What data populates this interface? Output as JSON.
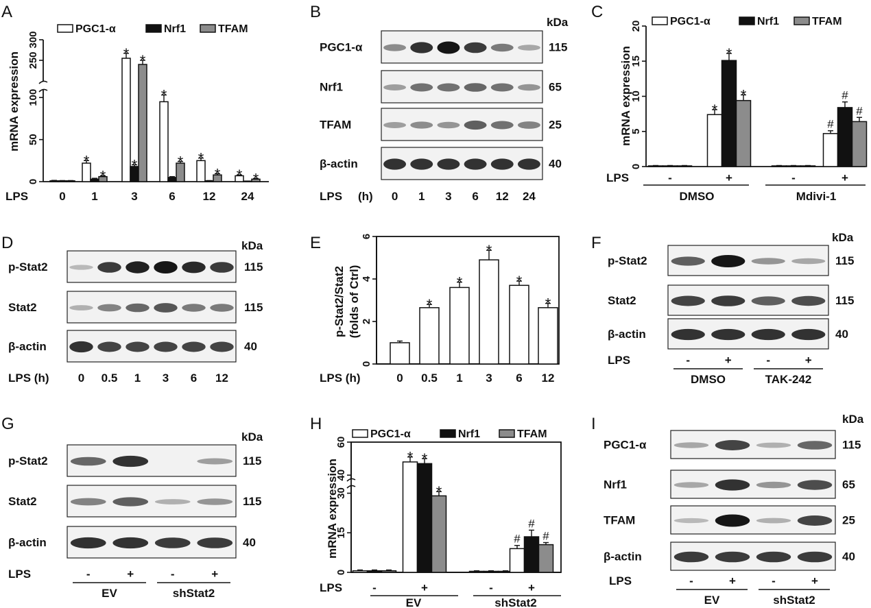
{
  "figure": {
    "panels": {
      "A": {
        "label": "A"
      },
      "B": {
        "label": "B"
      },
      "C": {
        "label": "C"
      },
      "D": {
        "label": "D"
      },
      "E": {
        "label": "E"
      },
      "F": {
        "label": "F"
      },
      "G": {
        "label": "G"
      },
      "H": {
        "label": "H"
      },
      "I": {
        "label": "I"
      }
    },
    "common": {
      "kda": "kDa",
      "lps": "LPS",
      "lps_h": "LPS (h)",
      "lps_l": "LPS",
      "lps_h_unit": "(h)",
      "minus": "-",
      "plus": "+",
      "star": "*",
      "hash": "#"
    },
    "legend": {
      "pgc": "PGC1-α",
      "nrf": "Nrf1",
      "tfam": "TFAM"
    },
    "blots": {
      "B": {
        "rows": [
          "PGC1-α",
          "Nrf1",
          "TFAM",
          "β-actin"
        ],
        "kda": [
          "115",
          "65",
          "25",
          "40"
        ],
        "lanes": [
          "0",
          "1",
          "3",
          "6",
          "12",
          "24"
        ],
        "intensity": [
          [
            0.35,
            0.85,
            1.0,
            0.8,
            0.45,
            0.2
          ],
          [
            0.25,
            0.5,
            0.5,
            0.55,
            0.5,
            0.3
          ],
          [
            0.25,
            0.35,
            0.3,
            0.6,
            0.5,
            0.4
          ],
          [
            0.85,
            0.85,
            0.85,
            0.85,
            0.85,
            0.85
          ]
        ]
      },
      "D": {
        "rows": [
          "p-Stat2",
          "Stat2",
          "β-actin"
        ],
        "kda": [
          "115",
          "115",
          "40"
        ],
        "lanes": [
          "0",
          "0.5",
          "1",
          "3",
          "6",
          "12"
        ],
        "intensity": [
          [
            0.1,
            0.8,
            0.95,
            1.0,
            0.9,
            0.8
          ],
          [
            0.15,
            0.4,
            0.55,
            0.65,
            0.45,
            0.45
          ],
          [
            0.85,
            0.75,
            0.75,
            0.75,
            0.75,
            0.75
          ]
        ]
      },
      "F": {
        "rows": [
          "p-Stat2",
          "Stat2",
          "β-actin"
        ],
        "kda": [
          "115",
          "115",
          "40"
        ],
        "groups": [
          "DMSO",
          "TAK-242"
        ],
        "intensity": [
          [
            0.6,
            1.0,
            0.3,
            0.2
          ],
          [
            0.75,
            0.8,
            0.6,
            0.7
          ],
          [
            0.85,
            0.85,
            0.85,
            0.85
          ]
        ]
      },
      "G": {
        "rows": [
          "p-Stat2",
          "Stat2",
          "β-actin"
        ],
        "kda": [
          "115",
          "115",
          "40"
        ],
        "groups": [
          "EV",
          "shStat2"
        ],
        "intensity": [
          [
            0.55,
            0.85,
            0.0,
            0.25
          ],
          [
            0.4,
            0.6,
            0.15,
            0.3
          ],
          [
            0.85,
            0.85,
            0.8,
            0.8
          ]
        ]
      },
      "I": {
        "rows": [
          "PGC1-α",
          "Nrf1",
          "TFAM",
          "β-actin"
        ],
        "kda": [
          "115",
          "65",
          "25",
          "40"
        ],
        "groups": [
          "EV",
          "shStat2"
        ],
        "intensity": [
          [
            0.2,
            0.75,
            0.15,
            0.55
          ],
          [
            0.2,
            0.85,
            0.3,
            0.7
          ],
          [
            0.1,
            1.0,
            0.15,
            0.75
          ],
          [
            0.8,
            0.8,
            0.8,
            0.8
          ]
        ]
      }
    },
    "C": {
      "groups": [
        "DMSO",
        "Mdivi-1"
      ]
    },
    "H": {
      "groups": [
        "EV",
        "shStat2"
      ]
    }
  },
  "chart_data": [
    {
      "panel": "A",
      "type": "bar",
      "ylabel": "mRNA expression",
      "xlabel": "LPS",
      "categories": [
        "0",
        "1",
        "3",
        "6",
        "12",
        "24"
      ],
      "y_axis_break": [
        110,
        200
      ],
      "yticks": [
        0,
        50,
        100,
        250,
        300
      ],
      "ylim": [
        0,
        300
      ],
      "series": [
        {
          "name": "PGC1-α",
          "color": "#ffffff",
          "values": [
            1,
            22,
            255,
            95,
            25,
            7
          ],
          "errors": [
            0.5,
            3,
            12,
            8,
            3,
            1
          ],
          "sig": [
            "",
            "*",
            "*",
            "*",
            "*",
            "*"
          ]
        },
        {
          "name": "Nrf1",
          "color": "#111111",
          "values": [
            1,
            3,
            18,
            5,
            1,
            0.5
          ],
          "errors": [
            0.3,
            1,
            2,
            1,
            0.3,
            0.2
          ],
          "sig": [
            "",
            "",
            "*",
            "",
            "",
            ""
          ]
        },
        {
          "name": "TFAM",
          "color": "#8c8c8c",
          "values": [
            1,
            6,
            240,
            22,
            8,
            3
          ],
          "errors": [
            0.3,
            1,
            10,
            2,
            1.5,
            0.8
          ],
          "sig": [
            "",
            "*",
            "*",
            "*",
            "*",
            "*"
          ]
        }
      ]
    },
    {
      "panel": "C",
      "type": "bar",
      "ylabel": "mRNA expression",
      "xlabel": "LPS",
      "categories": [
        "-",
        "+",
        "-",
        "+"
      ],
      "groups": [
        "DMSO",
        "Mdivi-1"
      ],
      "ylim": [
        0,
        20
      ],
      "yticks": [
        0,
        5,
        10,
        15,
        20
      ],
      "series": [
        {
          "name": "PGC1-α",
          "color": "#ffffff",
          "values": [
            0.1,
            7.4,
            0.1,
            4.7
          ],
          "errors": [
            0.05,
            0.7,
            0.05,
            0.4
          ],
          "sig": [
            "",
            "*",
            "",
            "#"
          ]
        },
        {
          "name": "Nrf1",
          "color": "#111111",
          "values": [
            0.1,
            15.1,
            0.1,
            8.4
          ],
          "errors": [
            0.05,
            1.0,
            0.05,
            0.8
          ],
          "sig": [
            "",
            "*",
            "",
            "#"
          ]
        },
        {
          "name": "TFAM",
          "color": "#8c8c8c",
          "values": [
            0.1,
            9.4,
            0.1,
            6.4
          ],
          "errors": [
            0.05,
            0.8,
            0.05,
            0.6
          ],
          "sig": [
            "",
            "*",
            "",
            "#"
          ]
        }
      ]
    },
    {
      "panel": "E",
      "type": "bar",
      "ylabel": "p-Stat2/Stat2 (folds of Ctrl)",
      "ylabel_lines": [
        "p-Stat2/Stat2",
        "(folds of Ctrl)"
      ],
      "xlabel": "LPS (h)",
      "categories": [
        "0",
        "0.5",
        "1",
        "3",
        "6",
        "12"
      ],
      "ylim": [
        0,
        6
      ],
      "yticks": [
        0,
        2,
        4,
        6
      ],
      "series": [
        {
          "color": "#ffffff",
          "values": [
            1.0,
            2.65,
            3.6,
            4.9,
            3.7,
            2.65
          ],
          "errors": [
            0.08,
            0.15,
            0.25,
            0.45,
            0.2,
            0.2
          ],
          "sig": [
            "",
            "*",
            "*",
            "*",
            "*",
            "*"
          ]
        }
      ]
    },
    {
      "panel": "H",
      "type": "bar",
      "ylabel": "mRNA expression",
      "xlabel": "LPS",
      "categories": [
        "-",
        "+",
        "-",
        "+"
      ],
      "groups": [
        "EV",
        "shStat2"
      ],
      "y_axis_break": [
        33,
        38
      ],
      "yticks": [
        0,
        15,
        30,
        40,
        60
      ],
      "ylim": [
        0,
        60
      ],
      "series": [
        {
          "name": "PGC1-α",
          "color": "#ffffff",
          "values": [
            0.6,
            48,
            0.4,
            9
          ],
          "errors": [
            0.3,
            3,
            0.2,
            1.2
          ],
          "sig": [
            "",
            "*",
            "",
            "#"
          ]
        },
        {
          "name": "Nrf1",
          "color": "#111111",
          "values": [
            0.6,
            47,
            0.4,
            13.5
          ],
          "errors": [
            0.3,
            3,
            0.2,
            2.5
          ],
          "sig": [
            "",
            "*",
            "",
            "#"
          ]
        },
        {
          "name": "TFAM",
          "color": "#8c8c8c",
          "values": [
            0.6,
            29,
            0.4,
            10.5
          ],
          "errors": [
            0.3,
            1.6,
            0.2,
            0.8
          ],
          "sig": [
            "",
            "*",
            "",
            "#"
          ]
        }
      ]
    }
  ]
}
